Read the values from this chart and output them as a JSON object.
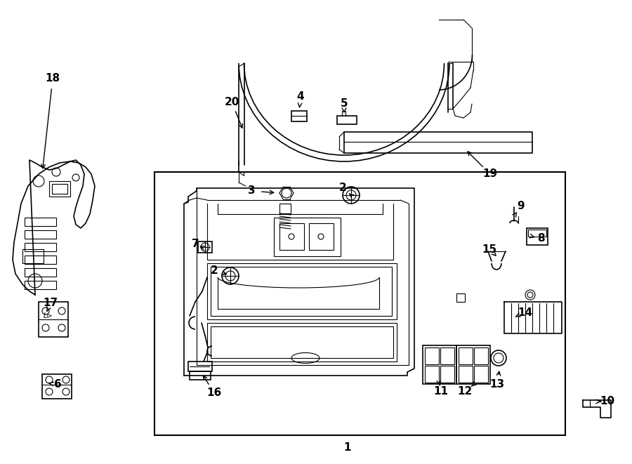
{
  "bg_color": "#ffffff",
  "line_color": "#000000",
  "figsize": [
    9.0,
    6.61
  ],
  "dpi": 100
}
